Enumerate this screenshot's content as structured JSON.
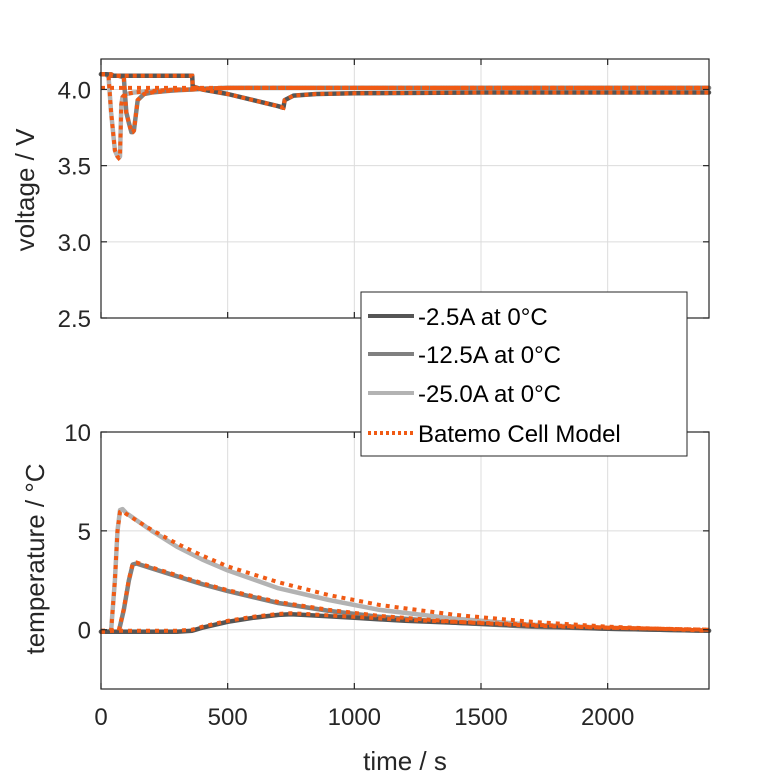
{
  "chart_data": [
    {
      "type": "line",
      "id": "voltage",
      "title": "",
      "xlabel": "",
      "ylabel": "voltage / V",
      "xlim": [
        0,
        2400
      ],
      "ylim": [
        2.5,
        4.2
      ],
      "xticks": [
        0,
        500,
        1000,
        1500,
        2000
      ],
      "xtick_labels": [],
      "yticks": [
        2.5,
        3.0,
        3.5,
        4.0
      ],
      "ytick_labels": [
        "2.5",
        "3.0",
        "3.5",
        "4.0"
      ],
      "grid": true,
      "series": [
        {
          "name": "-2.5A at 0°C",
          "x": [
            0,
            20,
            40,
            60,
            100,
            200,
            300,
            360,
            362,
            400,
            500,
            600,
            700,
            720,
            725,
            760,
            850,
            1000,
            1500,
            2000,
            2400
          ],
          "y": [
            4.1,
            4.1,
            4.09,
            4.09,
            4.09,
            4.09,
            4.09,
            4.09,
            4.02,
            4.0,
            3.97,
            3.93,
            3.89,
            3.88,
            3.93,
            3.96,
            3.97,
            3.975,
            3.98,
            3.98,
            3.98
          ]
        },
        {
          "name": "-12.5A at 0°C",
          "x": [
            0,
            40,
            50,
            70,
            90,
            100,
            110,
            120,
            125,
            130,
            145,
            170,
            200,
            260,
            300,
            360,
            400,
            500,
            1000,
            1500,
            2000,
            2400
          ],
          "y": [
            4.1,
            4.1,
            4.09,
            4.09,
            4.08,
            3.85,
            3.78,
            3.72,
            3.72,
            3.73,
            3.93,
            3.97,
            3.98,
            3.99,
            3.995,
            4.0,
            4.005,
            4.01,
            4.01,
            4.01,
            4.01,
            4.01
          ]
        },
        {
          "name": "-25.0A at 0°C",
          "x": [
            0,
            20,
            30,
            40,
            55,
            65,
            70,
            75,
            80,
            85,
            90,
            100,
            130,
            200,
            300,
            360,
            400,
            500,
            1000,
            1500,
            2000,
            2400
          ],
          "y": [
            4.1,
            4.1,
            4.08,
            3.85,
            3.6,
            3.56,
            3.55,
            3.56,
            3.9,
            3.95,
            3.96,
            3.97,
            3.98,
            3.99,
            4.0,
            4.0,
            4.005,
            4.01,
            4.01,
            4.01,
            4.01,
            4.01
          ]
        },
        {
          "name": "Batemo Cell Model",
          "style": "dotted",
          "x": [
            0,
            2400
          ],
          "y": [
            4.01,
            4.01
          ]
        }
      ],
      "legend": {
        "placement": "bottom-right",
        "entries": [
          "-2.5A at 0°C",
          "-12.5A at 0°C",
          "-25.0A at 0°C",
          "Batemo Cell Model"
        ]
      }
    },
    {
      "type": "line",
      "id": "temperature",
      "title": "",
      "xlabel": "time / s",
      "ylabel": "temperature / °C",
      "xlim": [
        0,
        2400
      ],
      "ylim": [
        -3,
        10
      ],
      "xticks": [
        0,
        500,
        1000,
        1500,
        2000
      ],
      "xtick_labels": [
        "0",
        "500",
        "1000",
        "1500",
        "2000"
      ],
      "yticks": [
        0,
        5,
        10
      ],
      "ytick_labels": [
        "0",
        "5",
        "10"
      ],
      "grid": true,
      "series": [
        {
          "name": "-2.5A at 0°C",
          "x": [
            0,
            100,
            200,
            300,
            360,
            400,
            500,
            600,
            700,
            750,
            800,
            1000,
            1200,
            1500,
            1800,
            2000,
            2400
          ],
          "y": [
            -0.1,
            -0.1,
            -0.1,
            -0.1,
            -0.05,
            0.1,
            0.4,
            0.6,
            0.75,
            0.78,
            0.75,
            0.6,
            0.45,
            0.3,
            0.15,
            0.05,
            -0.05
          ]
        },
        {
          "name": "-12.5A at 0°C",
          "x": [
            0,
            40,
            70,
            90,
            110,
            125,
            140,
            200,
            300,
            400,
            500,
            700,
            900,
            1100,
            1400,
            1700,
            2000,
            2400
          ],
          "y": [
            -0.1,
            -0.1,
            -0.1,
            1.0,
            2.5,
            3.3,
            3.35,
            3.1,
            2.7,
            2.3,
            1.95,
            1.35,
            0.95,
            0.65,
            0.35,
            0.15,
            0.05,
            -0.05
          ]
        },
        {
          "name": "-25.0A at 0°C",
          "x": [
            0,
            20,
            40,
            55,
            65,
            75,
            85,
            100,
            200,
            300,
            400,
            500,
            700,
            900,
            1100,
            1400,
            1700,
            2000,
            2400
          ],
          "y": [
            -0.1,
            -0.1,
            -0.05,
            2.5,
            5.0,
            6.05,
            6.1,
            5.9,
            5.0,
            4.2,
            3.55,
            3.0,
            2.1,
            1.5,
            1.0,
            0.55,
            0.25,
            0.1,
            -0.05
          ]
        },
        {
          "name": "Batemo Cell Model",
          "style": "dotted",
          "x": [
            0,
            20,
            40,
            55,
            65,
            75,
            85,
            100,
            200,
            300,
            400,
            500,
            700,
            900,
            1100,
            1400,
            1700,
            2000,
            2400
          ],
          "y": [
            -0.1,
            -0.1,
            -0.05,
            2.5,
            5.0,
            5.95,
            6.0,
            5.85,
            5.05,
            4.35,
            3.75,
            3.2,
            2.4,
            1.75,
            1.25,
            0.75,
            0.4,
            0.15,
            -0.05
          ]
        }
      ]
    }
  ],
  "series_colors": {
    "-2.5A at 0°C": "#555555",
    "-12.5A at 0°C": "#808080",
    "-25.0A at 0°C": "#b3b3b3",
    "Batemo Cell Model": "#f05a14"
  },
  "axis_color": "#262626",
  "grid_color": "#dcdcdc"
}
